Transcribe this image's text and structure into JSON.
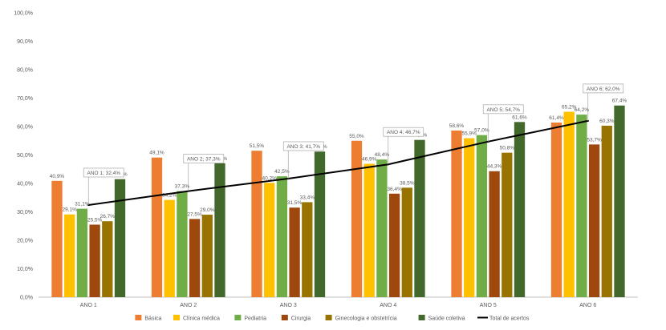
{
  "chart_data": {
    "type": "bar",
    "categories": [
      "ANO 1",
      "ANO 2",
      "ANO 3",
      "ANO 4",
      "ANO 5",
      "ANO 6"
    ],
    "series": [
      {
        "name": "Básica",
        "color": "#ED7D31",
        "values": [
          40.9,
          49.1,
          51.5,
          55.0,
          58.6,
          61.4
        ],
        "labels": [
          "40,9%",
          "49,1%",
          "51,5%",
          "55,0%",
          "58,6%",
          "61,4%"
        ]
      },
      {
        "name": "Clínica médica",
        "color": "#FFC000",
        "values": [
          29.1,
          34.2,
          40.2,
          46.9,
          55.9,
          65.2
        ],
        "labels": [
          "29,1%",
          "34,2%",
          "40,2%",
          "46,9%",
          "55,9%",
          "65,2%"
        ]
      },
      {
        "name": "Pediatria",
        "color": "#70AD47",
        "values": [
          31.1,
          37.3,
          42.5,
          48.4,
          57.0,
          64.2
        ],
        "labels": [
          "31,1%",
          "37,3%",
          "42,5%",
          "48,4%",
          "57,0%",
          "64,2%"
        ]
      },
      {
        "name": "Cirurgia",
        "color": "#9E480E",
        "values": [
          25.5,
          27.5,
          31.5,
          36.4,
          44.3,
          53.7
        ],
        "labels": [
          "25,5%",
          "27,5%",
          "31,5%",
          "36,4%",
          "44,3%",
          "53,7%"
        ]
      },
      {
        "name": "Ginecologia e obstetrícia",
        "color": "#997300",
        "values": [
          26.7,
          29.0,
          33.4,
          38.5,
          50.8,
          60.3
        ],
        "labels": [
          "26,7%",
          "29,0%",
          "33,4%",
          "38,5%",
          "50,8%",
          "60,3%"
        ]
      },
      {
        "name": "Saúde coletiva",
        "color": "#43682B",
        "values": [
          41.5,
          47.1,
          51.2,
          55.3,
          61.6,
          67.4
        ],
        "labels": [
          "41,5%",
          "47,1%",
          "51,2%",
          "55,3%",
          "61,6%",
          "67,4%"
        ]
      }
    ],
    "line": {
      "name": "Total de acertos",
      "color": "#000000",
      "values": [
        32.4,
        37.3,
        41.7,
        46.7,
        54.7,
        62.0
      ],
      "labels": [
        "ANO 1; 32,4%",
        "ANO 2; 37,3%",
        "ANO 3; 41,7%",
        "ANO 4; 46,7%",
        "ANO 5; 54,7%",
        "ANO 6; 62,0%"
      ]
    },
    "ylim": [
      0,
      100
    ],
    "yticks": [
      "0,0%",
      "10,0%",
      "20,0%",
      "30,0%",
      "40,0%",
      "50,0%",
      "60,0%",
      "70,0%",
      "80,0%",
      "90,0%",
      "100,0%"
    ],
    "title": "",
    "xlabel": "",
    "ylabel": "",
    "grid": false,
    "legend_position": "bottom"
  }
}
